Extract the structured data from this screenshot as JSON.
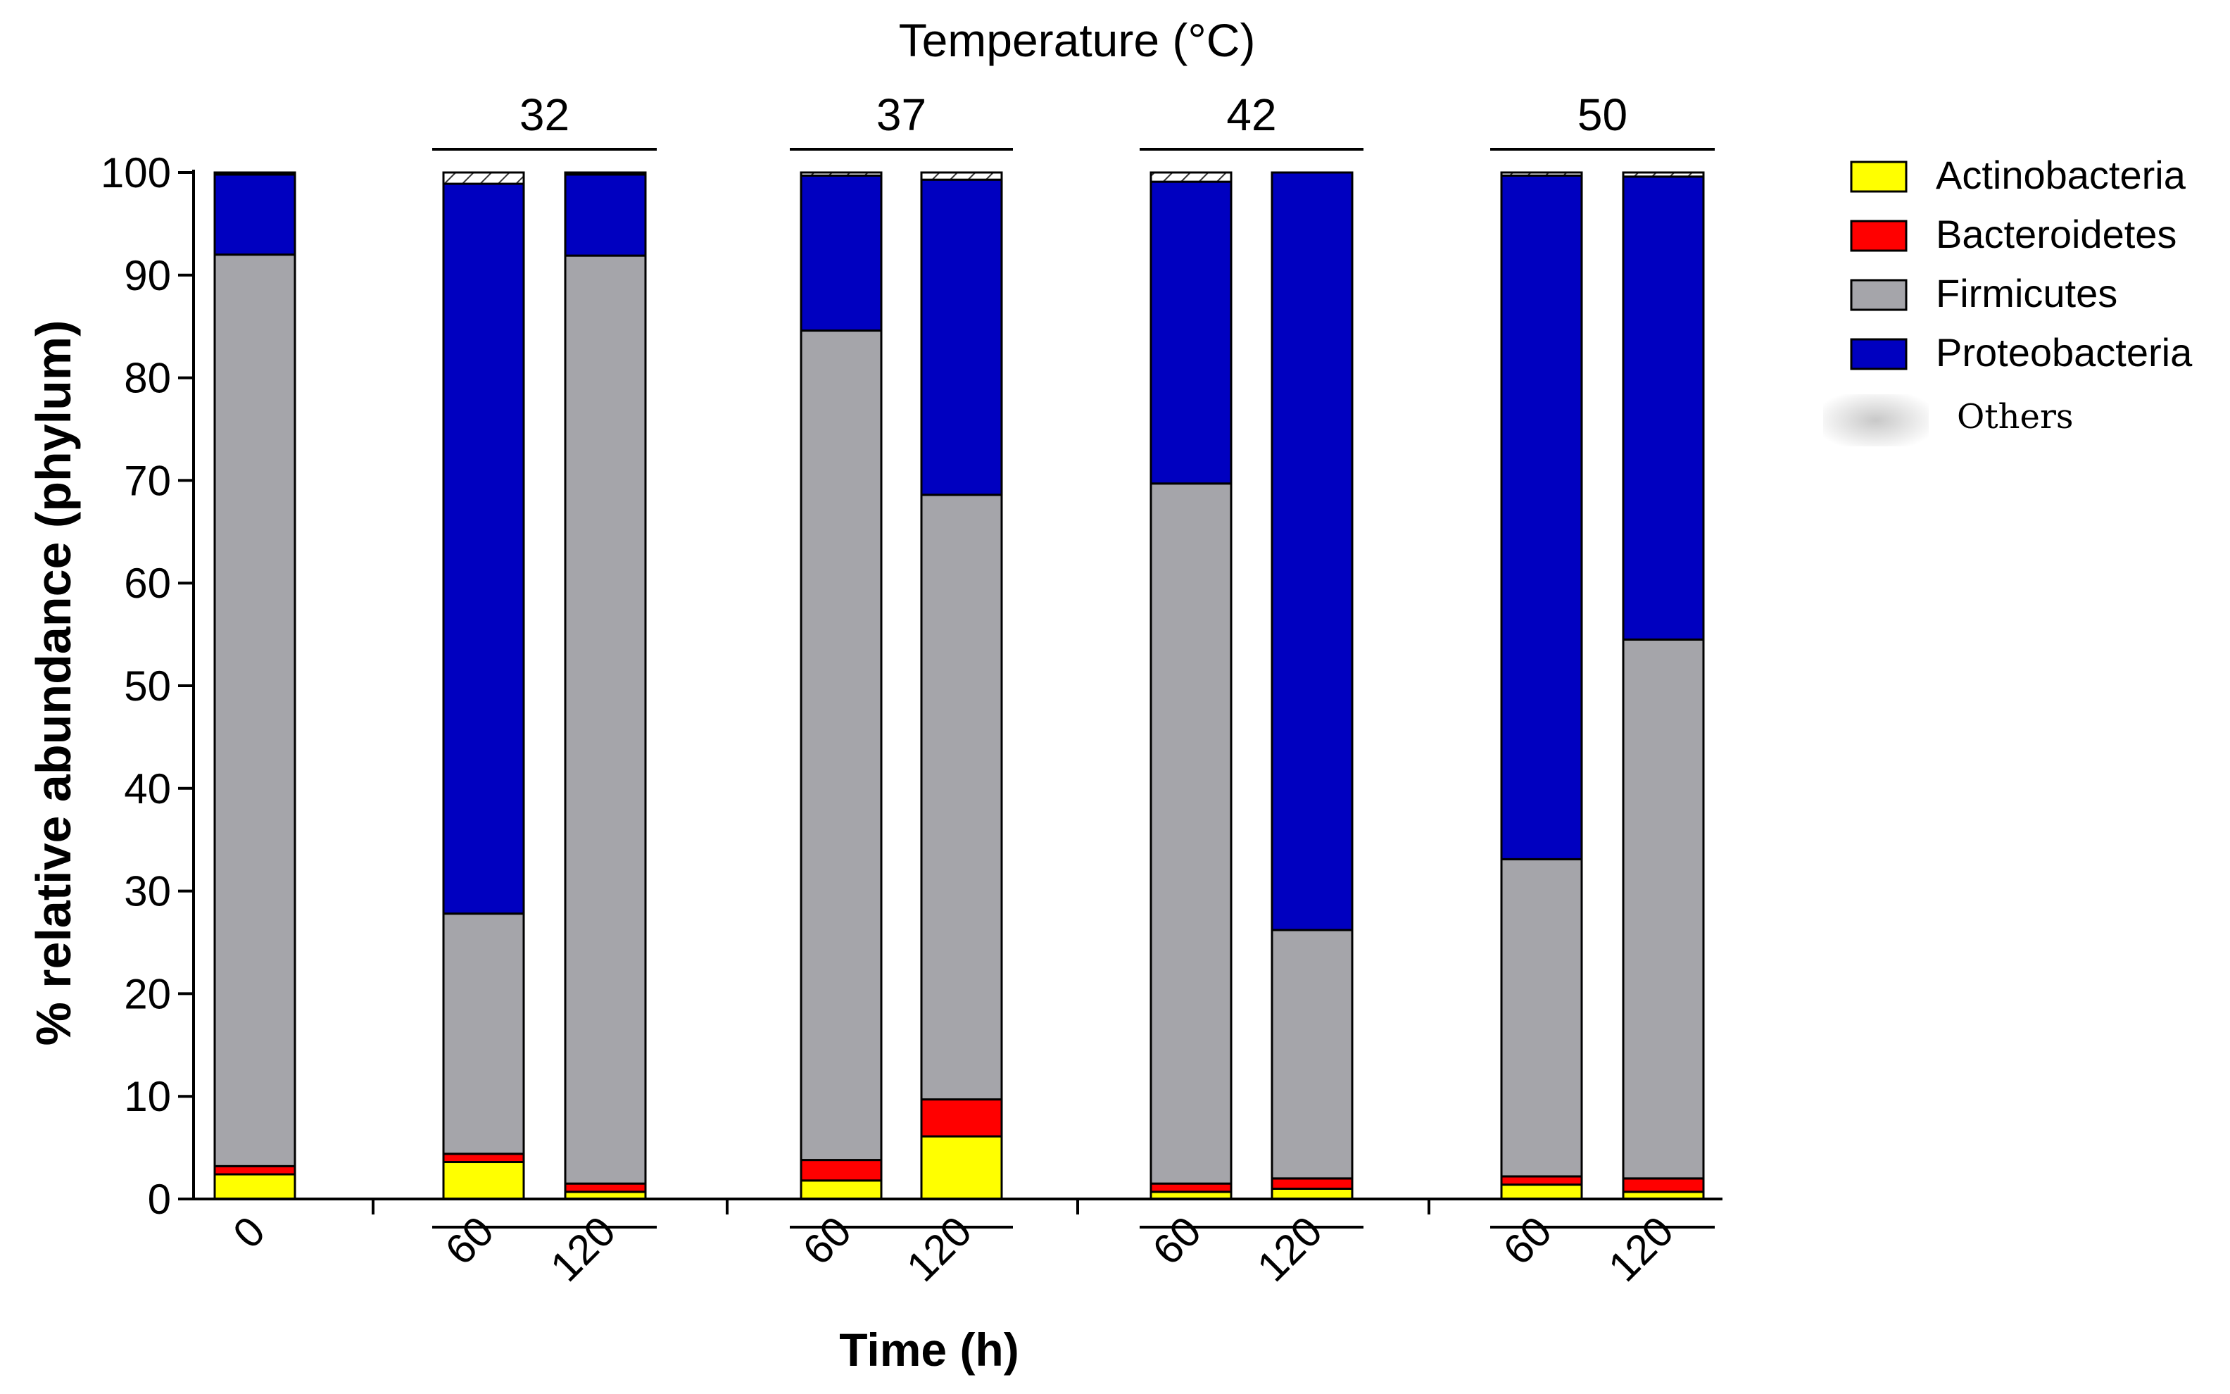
{
  "chart_data": {
    "type": "bar",
    "stacked": true,
    "title": "Temperature (°C)",
    "xlabel": "Time (h)",
    "ylabel": "% relative abundance (phylum)",
    "ylim": [
      0,
      100
    ],
    "yticks": [
      0,
      10,
      20,
      30,
      40,
      50,
      60,
      70,
      80,
      90,
      100
    ],
    "groups": [
      {
        "label": "",
        "bars": [
          0
        ]
      },
      {
        "label": "32",
        "bars": [
          1,
          2
        ]
      },
      {
        "label": "37",
        "bars": [
          3,
          4
        ]
      },
      {
        "label": "42",
        "bars": [
          5,
          6
        ]
      },
      {
        "label": "50",
        "bars": [
          7,
          8
        ]
      }
    ],
    "categories": [
      "0",
      "60",
      "120",
      "60",
      "120",
      "60",
      "120",
      "60",
      "120"
    ],
    "series": [
      {
        "name": "Actinobacteria",
        "color": "#ffff00",
        "values": [
          2.4,
          3.6,
          0.7,
          1.8,
          6.1,
          0.7,
          1.0,
          1.4,
          0.7
        ]
      },
      {
        "name": "Bacteroidetes",
        "color": "#ff0000",
        "values": [
          0.8,
          0.8,
          0.8,
          2.0,
          3.6,
          0.8,
          1.0,
          0.8,
          1.3
        ]
      },
      {
        "name": "Firmicutes",
        "color": "#a5a5aa",
        "values": [
          88.8,
          23.4,
          90.4,
          80.8,
          58.9,
          68.2,
          24.2,
          30.9,
          52.5
        ]
      },
      {
        "name": "Proteobacteria",
        "color": "#0000c0",
        "values": [
          7.8,
          71.1,
          7.9,
          15.1,
          30.7,
          29.4,
          73.8,
          66.6,
          45.1
        ]
      },
      {
        "name": "Others",
        "color": "#ffffff",
        "values": [
          0.2,
          1.1,
          0.2,
          0.3,
          0.7,
          0.9,
          0.0,
          0.3,
          0.4
        ]
      }
    ],
    "legend_position": "right"
  }
}
